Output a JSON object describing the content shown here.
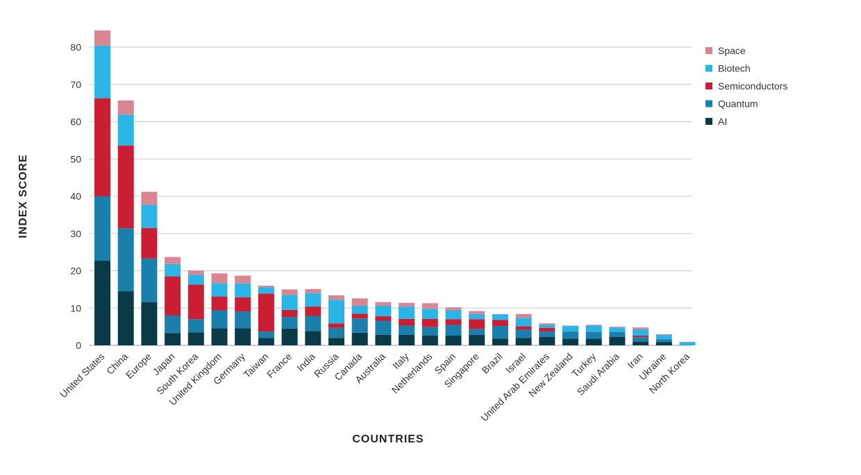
{
  "chart_data": {
    "type": "bar",
    "stacked": true,
    "xlabel": "COUNTRIES",
    "ylabel": "INDEX SCORE",
    "ylim": [
      0,
      85
    ],
    "yticks": [
      0,
      10,
      20,
      30,
      40,
      50,
      60,
      70,
      80
    ],
    "grid": true,
    "legend_position": "right",
    "categories": [
      "United States",
      "China",
      "Europe",
      "Japan",
      "South Korea",
      "United Kingdom",
      "Germany",
      "Taiwan",
      "France",
      "India",
      "Russia",
      "Canada",
      "Australia",
      "Italy",
      "Netherlands",
      "Spain",
      "Singapore",
      "Brazil",
      "Israel",
      "United Arab Emirates",
      "New Zealand",
      "Turkey",
      "Saudi Arabia",
      "Iran",
      "Ukraine",
      "North Korea"
    ],
    "series": [
      {
        "name": "AI",
        "color": "#0a3a47",
        "values": [
          22.7,
          14.5,
          11.6,
          3.3,
          3.5,
          4.6,
          4.6,
          2.0,
          4.5,
          3.8,
          2.0,
          3.4,
          2.8,
          2.8,
          2.6,
          2.6,
          2.8,
          1.8,
          2.0,
          2.3,
          1.8,
          1.8,
          2.3,
          1.0,
          0.9,
          0.0
        ]
      },
      {
        "name": "Quantum",
        "color": "#1a7fab",
        "values": [
          17.3,
          16.9,
          11.7,
          4.7,
          3.5,
          4.8,
          4.5,
          1.7,
          3.1,
          4.1,
          2.7,
          3.8,
          3.8,
          2.5,
          2.3,
          2.9,
          1.6,
          3.4,
          2.2,
          1.4,
          1.9,
          1.8,
          1.3,
          1.2,
          0.7,
          0.0
        ]
      },
      {
        "name": "Semiconductors",
        "color": "#c91e33",
        "values": [
          26.3,
          22.2,
          8.2,
          10.5,
          9.3,
          3.7,
          3.8,
          10.2,
          1.9,
          2.5,
          1.2,
          1.3,
          1.2,
          1.8,
          2.2,
          1.5,
          2.6,
          1.6,
          0.9,
          1.0,
          0.0,
          0.0,
          0.0,
          0.4,
          0.0,
          0.0
        ]
      },
      {
        "name": "Biotech",
        "color": "#2bb5e6",
        "values": [
          14.1,
          8.3,
          6.2,
          3.3,
          2.6,
          3.6,
          3.7,
          1.7,
          4.0,
          3.6,
          6.3,
          2.1,
          2.8,
          3.3,
          2.7,
          2.4,
          1.4,
          1.5,
          2.3,
          0.8,
          1.5,
          1.7,
          1.2,
          1.7,
          1.2,
          0.9
        ]
      },
      {
        "name": "Space",
        "color": "#d98592",
        "values": [
          4.1,
          3.8,
          3.5,
          1.9,
          1.2,
          2.6,
          2.1,
          0.4,
          1.5,
          1.1,
          1.2,
          2.0,
          1.0,
          1.0,
          1.5,
          0.8,
          0.8,
          0.1,
          1.0,
          0.4,
          0.1,
          0.2,
          0.2,
          0.5,
          0.2,
          0.0
        ]
      }
    ],
    "legend_order": [
      "Space",
      "Biotech",
      "Semiconductors",
      "Quantum",
      "AI"
    ]
  }
}
